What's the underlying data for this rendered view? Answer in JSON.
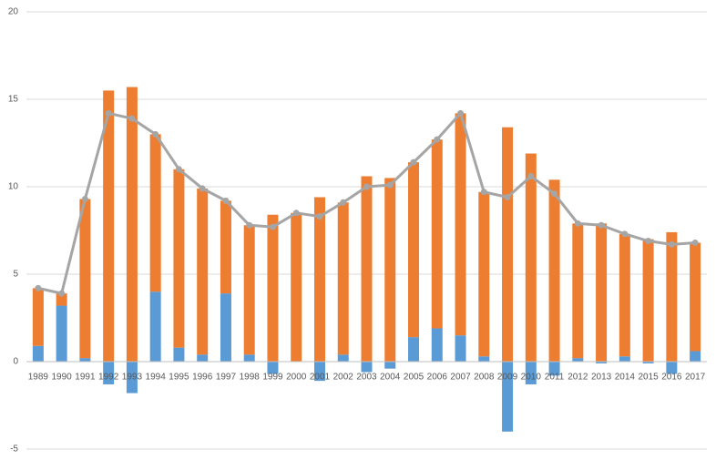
{
  "chart_data": {
    "type": "stacked-bar-line",
    "categories": [
      "1989",
      "1990",
      "1991",
      "1992",
      "1993",
      "1994",
      "1995",
      "1996",
      "1997",
      "1998",
      "1999",
      "2000",
      "2001",
      "2002",
      "2003",
      "2004",
      "2005",
      "2006",
      "2007",
      "2008",
      "2009",
      "2010",
      "2011",
      "2012",
      "2013",
      "2014",
      "2015",
      "2016",
      "2017"
    ],
    "series": [
      {
        "color": "#5b9bd5",
        "kind": "bar",
        "values": [
          0.9,
          3.2,
          0.2,
          -1.3,
          -1.8,
          4.0,
          0.8,
          0.4,
          3.9,
          0.4,
          -0.7,
          0,
          -1.1,
          0.4,
          -0.6,
          -0.4,
          1.4,
          1.9,
          1.5,
          0.3,
          -4.0,
          -1.3,
          -0.8,
          0.2,
          -0.1,
          0.3,
          -0.1,
          -0.7,
          0.6
        ]
      },
      {
        "color": "#ed7d31",
        "kind": "bar",
        "values": [
          3.3,
          0.7,
          9.1,
          15.5,
          15.7,
          9.0,
          10.2,
          9.5,
          5.3,
          7.4,
          8.4,
          8.5,
          9.4,
          8.7,
          10.6,
          10.5,
          10.0,
          10.8,
          12.7,
          9.4,
          13.4,
          11.9,
          10.4,
          7.7,
          7.9,
          7.0,
          7.0,
          7.4,
          6.2
        ]
      },
      {
        "color": "#a5a5a5",
        "kind": "line",
        "values": [
          4.2,
          3.9,
          9.3,
          14.2,
          13.9,
          13.0,
          11.0,
          9.9,
          9.2,
          7.8,
          7.7,
          8.5,
          8.3,
          9.1,
          10.0,
          10.1,
          11.4,
          12.7,
          14.2,
          9.7,
          9.4,
          10.6,
          9.6,
          7.9,
          7.8,
          7.3,
          6.9,
          6.7,
          6.8
        ]
      }
    ],
    "ylim": [
      -5,
      20
    ],
    "yticks": [
      -5,
      0,
      5,
      10,
      15,
      20
    ],
    "grid": true
  }
}
